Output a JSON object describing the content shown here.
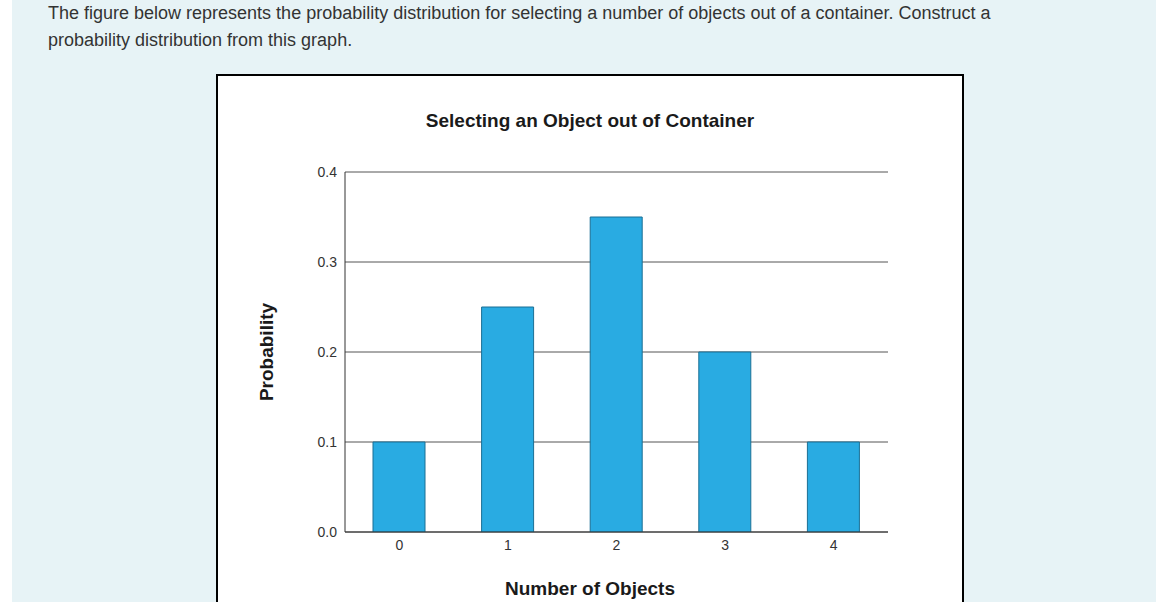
{
  "prompt": "The figure below represents the probability distribution for selecting a number of objects out of a container. Construct a probability distribution from this graph.",
  "chart_data": {
    "type": "bar",
    "title": "Selecting an Object out of Container",
    "x_label": "Number of Objects",
    "y_label": "Probability",
    "categories": [
      "0",
      "1",
      "2",
      "3",
      "4"
    ],
    "values": [
      0.1,
      0.25,
      0.35,
      0.2,
      0.1
    ],
    "color": "#29abe2",
    "ylim": [
      0,
      0.4
    ],
    "yticks": [
      {
        "value": 0,
        "label": "0.0"
      },
      0.1,
      0.2,
      0.3,
      0.4
    ],
    "grid": true
  }
}
